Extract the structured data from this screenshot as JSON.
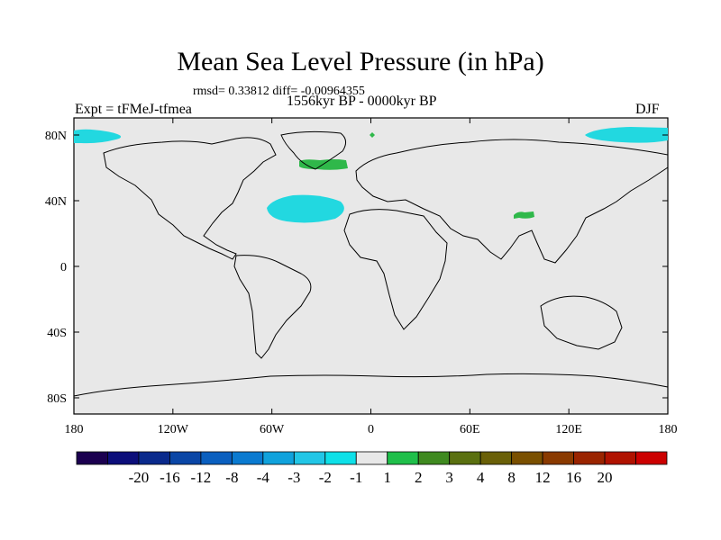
{
  "title": "Mean Sea Level Pressure (in hPa)",
  "stats_text": "rmsd= 0.33812 diff= -0.00964355",
  "left_label": "Expt = tFMeJ-tfmea",
  "center_label": "1556kyr BP - 0000kyr BP",
  "right_label": "DJF",
  "axes": {
    "x_ticks": [
      "180",
      "120W",
      "60W",
      "0",
      "60E",
      "120E",
      "180"
    ],
    "y_ticks": [
      "80N",
      "40N",
      "0",
      "40S",
      "80S"
    ]
  },
  "colorbar": {
    "colors": [
      "#1b0050",
      "#0c0e7a",
      "#0a2a8c",
      "#0a46a6",
      "#0a5fbf",
      "#0a7ad0",
      "#10a2dc",
      "#22c6e6",
      "#0ee0e8",
      "#e8e8e8",
      "#1fbf4a",
      "#3f8a20",
      "#5a7010",
      "#6a6008",
      "#7a5000",
      "#8a3a00",
      "#9a2400",
      "#b01200",
      "#cc0000"
    ],
    "labels": [
      "-20",
      "-16",
      "-12",
      "-8",
      "-4",
      "-3",
      "-2",
      "-1",
      "1",
      "2",
      "3",
      "4",
      "8",
      "12",
      "16",
      "20"
    ]
  },
  "map": {
    "background": "#e8e8e8",
    "negative_color": "#22d8e0",
    "positive_color": "#2fb84a"
  }
}
